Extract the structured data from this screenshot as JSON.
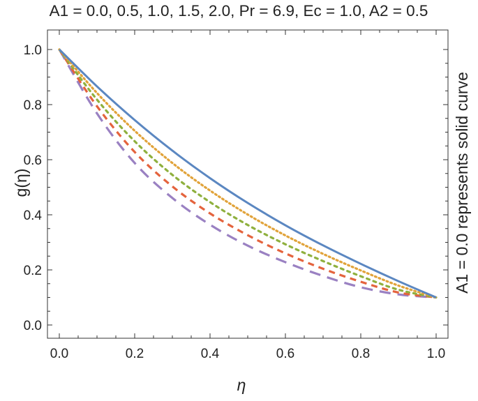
{
  "chart_data": {
    "type": "line",
    "title": "A1 = 0.0, 0.5, 1.0, 1.5, 2.0, Pr = 6.9, Ec = 1.0, A2 = 0.5",
    "xlabel": "η",
    "ylabel": "g(η)",
    "side_note": "A1 = 0.0 represents solid curve",
    "xlim": [
      0.0,
      1.0
    ],
    "ylim": [
      -0.05,
      1.05
    ],
    "xticks": [
      0.0,
      0.2,
      0.4,
      0.6,
      0.8,
      1.0
    ],
    "xtick_labels": [
      "0.0",
      "0.2",
      "0.4",
      "0.6",
      "0.8",
      "1.0"
    ],
    "yticks": [
      0.0,
      0.2,
      0.4,
      0.6,
      0.8,
      1.0
    ],
    "ytick_labels": [
      "0.0",
      "0.2",
      "0.4",
      "0.6",
      "0.8",
      "1.0"
    ],
    "grid": false,
    "frame": true,
    "x": [
      0.0,
      0.1,
      0.2,
      0.3,
      0.4,
      0.5,
      0.6,
      0.7,
      0.8,
      0.9,
      1.0
    ],
    "series": [
      {
        "color": "#5b87c1",
        "style": "solid",
        "values": [
          1.0,
          0.866,
          0.744,
          0.633,
          0.533,
          0.443,
          0.362,
          0.289,
          0.222,
          0.159,
          0.1
        ]
      },
      {
        "color": "#e1a33a",
        "style": "dotted",
        "values": [
          1.0,
          0.842,
          0.705,
          0.588,
          0.488,
          0.401,
          0.325,
          0.258,
          0.198,
          0.143,
          0.1
        ]
      },
      {
        "color": "#8fb03e",
        "style": "dotted-coarse",
        "values": [
          1.0,
          0.818,
          0.667,
          0.545,
          0.446,
          0.363,
          0.293,
          0.232,
          0.177,
          0.128,
          0.1
        ]
      },
      {
        "color": "#e4633d",
        "style": "dashed",
        "values": [
          1.0,
          0.794,
          0.628,
          0.503,
          0.405,
          0.326,
          0.26,
          0.204,
          0.157,
          0.118,
          0.1
        ]
      },
      {
        "color": "#9a81c2",
        "style": "long-dashed",
        "values": [
          1.0,
          0.768,
          0.588,
          0.461,
          0.364,
          0.288,
          0.228,
          0.178,
          0.137,
          0.111,
          0.1
        ]
      }
    ]
  }
}
